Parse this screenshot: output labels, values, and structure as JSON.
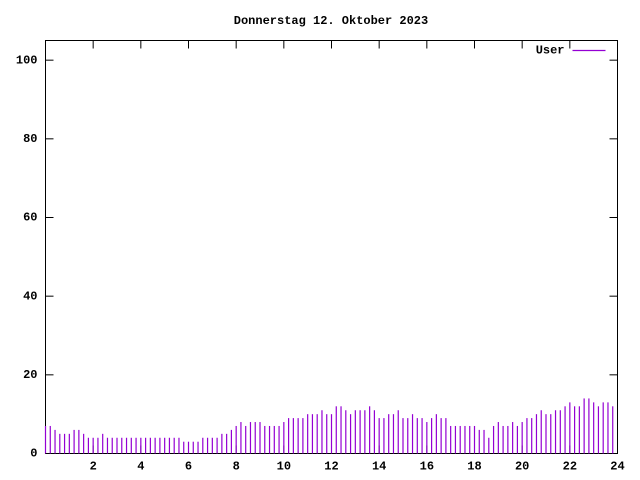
{
  "chart_data": {
    "type": "impulses",
    "title": "Donnerstag 12. Oktober 2023",
    "series": [
      {
        "name": "User",
        "color": "#9400d3",
        "x": [
          0,
          0.2,
          0.4,
          0.6,
          0.8,
          1,
          1.2,
          1.4,
          1.6,
          1.8,
          2,
          2.2,
          2.4,
          2.6,
          2.8,
          3,
          3.2,
          3.4,
          3.6,
          3.8,
          4,
          4.2,
          4.4,
          4.6,
          4.8,
          5,
          5.2,
          5.4,
          5.6,
          5.8,
          6,
          6.2,
          6.4,
          6.6,
          6.8,
          7,
          7.2,
          7.4,
          7.6,
          7.8,
          8,
          8.2,
          8.4,
          8.6,
          8.8,
          9,
          9.2,
          9.4,
          9.6,
          9.8,
          10,
          10.2,
          10.4,
          10.6,
          10.8,
          11,
          11.2,
          11.4,
          11.6,
          11.8,
          12,
          12.2,
          12.4,
          12.6,
          12.8,
          13,
          13.2,
          13.4,
          13.6,
          13.8,
          14,
          14.2,
          14.4,
          14.6,
          14.8,
          15,
          15.2,
          15.4,
          15.6,
          15.8,
          16,
          16.2,
          16.4,
          16.6,
          16.8,
          17,
          17.2,
          17.4,
          17.6,
          17.8,
          18,
          18.2,
          18.4,
          18.6,
          18.8,
          19,
          19.2,
          19.4,
          19.6,
          19.8,
          20,
          20.2,
          20.4,
          20.6,
          20.8,
          21,
          21.2,
          21.4,
          21.6,
          21.8,
          22,
          22.2,
          22.4,
          22.6,
          22.8,
          23,
          23.2,
          23.4,
          23.6,
          23.8
        ],
        "values": [
          7,
          7,
          6,
          5,
          5,
          5,
          6,
          6,
          5,
          4,
          4,
          4,
          5,
          4,
          4,
          4,
          4,
          4,
          4,
          4,
          4,
          4,
          4,
          4,
          4,
          4,
          4,
          4,
          4,
          3,
          3,
          3,
          3,
          4,
          4,
          4,
          4,
          5,
          5,
          6,
          7,
          8,
          7,
          8,
          8,
          8,
          7,
          7,
          7,
          7,
          8,
          9,
          9,
          9,
          9,
          10,
          10,
          10,
          11,
          10,
          10,
          12,
          12,
          11,
          10,
          11,
          11,
          11,
          12,
          11,
          9,
          9,
          10,
          10,
          11,
          9,
          9,
          10,
          9,
          9,
          8,
          9,
          10,
          9,
          9,
          7,
          7,
          7,
          7,
          7,
          7,
          6,
          6,
          4,
          7,
          8,
          7,
          7,
          8,
          7,
          8,
          9,
          9,
          10,
          11,
          10,
          10,
          11,
          11,
          12,
          13,
          12,
          12,
          14,
          14,
          13,
          12,
          13,
          13,
          12
        ]
      }
    ],
    "xlim": [
      0,
      24
    ],
    "ylim": [
      0,
      105
    ],
    "xticks": [
      2,
      4,
      6,
      8,
      10,
      12,
      14,
      16,
      18,
      20,
      22,
      24
    ],
    "yticks": [
      0,
      20,
      40,
      60,
      80,
      100
    ],
    "legend": "top-right"
  }
}
